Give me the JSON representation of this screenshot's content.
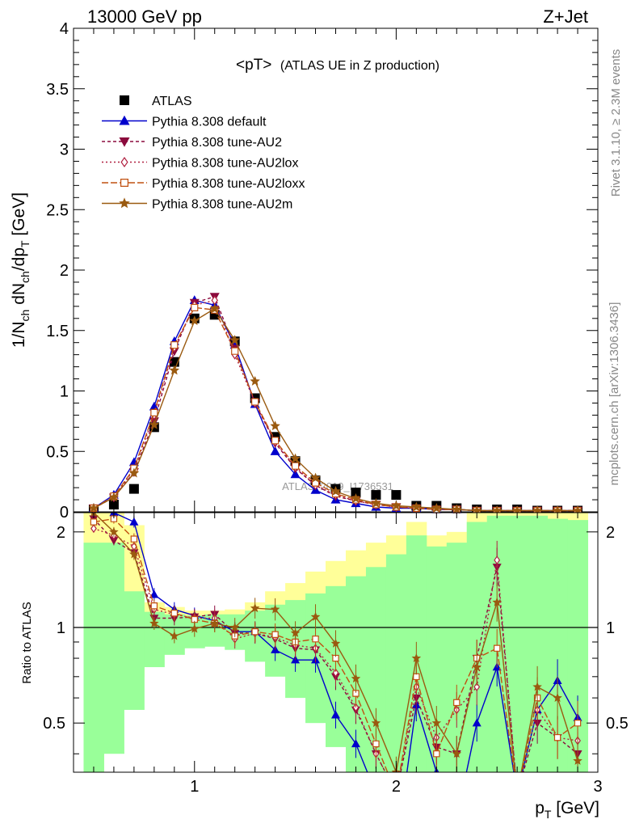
{
  "header": {
    "left": "13000 GeV pp",
    "right": "Z+Jet"
  },
  "side_labels": {
    "rivet": "Rivet 3.1.10, ≥ 2.3M events",
    "mcplots": "mcplots.cern.ch [arXiv:1306.3436]"
  },
  "colors": {
    "atlas": "#000000",
    "default": "#0000cc",
    "au2": "#8b0a3d",
    "au2lox": "#b02040",
    "au2loxx": "#c05010",
    "au2m": "#9a5a10",
    "band_inner": "#99ff99",
    "band_outer": "#ffff99"
  },
  "chart_data": [
    {
      "type": "line",
      "title": "<pT>",
      "subtitle": "(ATLAS UE in Z production)",
      "ylabel_main": "1/N",
      "ylabel_sub1": "ch",
      "ylabel_mid": " dN",
      "ylabel_sub2": "ch",
      "ylabel_end": "/dp",
      "ylabel_sub3": "T",
      "ylabel_unit": " [GeV]",
      "xlabel_main": "p",
      "xlabel_sub": "T",
      "xlabel_unit": " [GeV]",
      "xlim": [
        0.4,
        3.0
      ],
      "ylim": [
        0,
        4.0
      ],
      "xticks": [
        "1",
        "2",
        "3"
      ],
      "yticks": [
        "0",
        "0.5",
        "1",
        "1.5",
        "2",
        "2.5",
        "3",
        "3.5",
        "4"
      ],
      "watermark": "ATLAS_2019_I1736531",
      "legend_position": "top-left",
      "x": [
        0.5,
        0.6,
        0.7,
        0.8,
        0.9,
        1.0,
        1.1,
        1.2,
        1.3,
        1.4,
        1.5,
        1.6,
        1.7,
        1.8,
        1.9,
        2.0,
        2.1,
        2.2,
        2.3,
        2.4,
        2.5,
        2.6,
        2.7,
        2.8,
        2.9
      ],
      "series": [
        {
          "name": "ATLAS",
          "key": "atlas",
          "values": [
            0.02,
            0.06,
            0.19,
            0.7,
            1.24,
            1.6,
            1.63,
            1.41,
            0.94,
            0.62,
            0.42,
            0.26,
            0.19,
            0.16,
            0.14,
            0.14,
            0.05,
            0.05,
            0.03,
            0.02,
            0.02,
            0.02,
            0.01,
            0.01,
            0.01
          ]
        },
        {
          "name": "Pythia 8.308 default",
          "key": "default",
          "values": [
            0.03,
            0.14,
            0.41,
            0.87,
            1.41,
            1.75,
            1.71,
            1.38,
            0.89,
            0.5,
            0.31,
            0.18,
            0.1,
            0.07,
            0.04,
            0.03,
            0.03,
            0.02,
            0.02,
            0.01,
            0.01,
            0.01,
            0.01,
            0.01,
            0.01
          ]
        },
        {
          "name": "Pythia 8.308 tune-AU2",
          "key": "au2",
          "values": [
            0.03,
            0.12,
            0.33,
            0.75,
            1.33,
            1.73,
            1.78,
            1.35,
            0.9,
            0.57,
            0.36,
            0.22,
            0.13,
            0.09,
            0.06,
            0.04,
            0.03,
            0.02,
            0.02,
            0.01,
            0.01,
            0.01,
            0.01,
            0.01,
            0.01
          ]
        },
        {
          "name": "Pythia 8.308 tune-AU2lox",
          "key": "au2lox",
          "values": [
            0.03,
            0.12,
            0.35,
            0.8,
            1.36,
            1.71,
            1.75,
            1.3,
            0.9,
            0.58,
            0.37,
            0.22,
            0.14,
            0.09,
            0.06,
            0.04,
            0.03,
            0.02,
            0.02,
            0.01,
            0.01,
            0.01,
            0.01,
            0.01,
            0.01
          ]
        },
        {
          "name": "Pythia 8.308 tune-AU2loxx",
          "key": "au2loxx",
          "values": [
            0.03,
            0.13,
            0.36,
            0.82,
            1.38,
            1.69,
            1.67,
            1.33,
            0.91,
            0.59,
            0.38,
            0.24,
            0.15,
            0.1,
            0.06,
            0.04,
            0.03,
            0.02,
            0.02,
            0.01,
            0.01,
            0.01,
            0.01,
            0.01,
            0.01
          ]
        },
        {
          "name": "Pythia 8.308 tune-AU2m",
          "key": "au2m",
          "values": [
            0.03,
            0.12,
            0.32,
            0.72,
            1.17,
            1.58,
            1.68,
            1.42,
            1.08,
            0.71,
            0.44,
            0.28,
            0.17,
            0.11,
            0.07,
            0.05,
            0.04,
            0.03,
            0.02,
            0.01,
            0.01,
            0.01,
            0.01,
            0.01,
            0.01
          ]
        }
      ]
    },
    {
      "type": "line",
      "ylabel": "Ratio to ATLAS",
      "xlim": [
        0.4,
        3.0
      ],
      "ylim": [
        0.35,
        2.3
      ],
      "xticks": [
        "1",
        "2",
        "3"
      ],
      "yticks": [
        "0.5",
        "1",
        "2"
      ],
      "reference_line": 1.0,
      "x": [
        0.5,
        0.6,
        0.7,
        0.8,
        0.9,
        1.0,
        1.1,
        1.2,
        1.3,
        1.4,
        1.5,
        1.6,
        1.7,
        1.8,
        1.9,
        2.0,
        2.1,
        2.2,
        2.3,
        2.4,
        2.5,
        2.6,
        2.7,
        2.8,
        2.9
      ],
      "band_outer": {
        "low": [
          0.35,
          0.6,
          0.7,
          0.82,
          0.86,
          0.88,
          0.88,
          0.87,
          0.82,
          0.75,
          0.68,
          0.62,
          0.55,
          0.45,
          0.35,
          0.35,
          0.35,
          0.35,
          0.35,
          0.35,
          0.35,
          0.35,
          0.35,
          0.35,
          0.35
        ],
        "high": [
          2.3,
          2.3,
          2.1,
          1.2,
          1.16,
          1.13,
          1.13,
          1.14,
          1.2,
          1.3,
          1.38,
          1.5,
          1.62,
          1.75,
          1.85,
          1.95,
          2.15,
          1.95,
          2.0,
          2.3,
          2.3,
          2.3,
          2.3,
          2.3,
          2.3
        ]
      },
      "band_inner": {
        "low": [
          0.35,
          0.4,
          0.55,
          0.75,
          0.82,
          0.86,
          0.87,
          0.85,
          0.78,
          0.7,
          0.6,
          0.5,
          0.42,
          0.35,
          0.35,
          0.35,
          0.35,
          0.35,
          0.35,
          0.35,
          0.35,
          0.35,
          0.35,
          0.35,
          0.35
        ],
        "high": [
          1.85,
          1.85,
          1.3,
          1.12,
          1.1,
          1.09,
          1.1,
          1.1,
          1.13,
          1.18,
          1.22,
          1.28,
          1.35,
          1.45,
          1.55,
          1.7,
          1.95,
          1.8,
          1.85,
          2.15,
          2.25,
          2.25,
          2.25,
          2.2,
          2.18
        ]
      },
      "series": [
        {
          "key": "default",
          "values": [
            2.4,
            2.3,
            2.15,
            1.27,
            1.14,
            1.09,
            1.05,
            0.97,
            0.97,
            0.85,
            0.79,
            0.79,
            0.53,
            0.43,
            0.3,
            0.2,
            0.57,
            0.35,
            0.25,
            0.5,
            0.75,
            0.3,
            0.55,
            0.68,
            0.52
          ]
        },
        {
          "key": "au2",
          "values": [
            2.2,
            1.88,
            1.72,
            1.07,
            1.07,
            1.08,
            1.1,
            0.96,
            0.96,
            0.92,
            0.86,
            0.85,
            0.7,
            0.55,
            0.4,
            0.3,
            0.6,
            0.42,
            0.4,
            0.8,
            1.55,
            0.3,
            0.5,
            0.45,
            0.4
          ]
        },
        {
          "key": "au2lox",
          "values": [
            2.05,
            1.95,
            1.8,
            1.14,
            1.1,
            1.07,
            1.07,
            0.92,
            0.96,
            0.93,
            0.88,
            0.86,
            0.72,
            0.56,
            0.4,
            0.3,
            0.65,
            0.45,
            0.55,
            0.65,
            1.63,
            0.3,
            0.55,
            0.45,
            0.44
          ]
        },
        {
          "key": "au2loxx",
          "values": [
            2.15,
            2.2,
            1.9,
            1.17,
            1.11,
            1.06,
            1.03,
            0.94,
            0.97,
            0.95,
            0.9,
            0.92,
            0.8,
            0.62,
            0.43,
            0.3,
            0.7,
            0.4,
            0.58,
            0.8,
            0.86,
            0.3,
            0.6,
            0.45,
            0.5
          ]
        },
        {
          "key": "au2m",
          "values": [
            2.3,
            2.0,
            1.7,
            1.03,
            0.94,
            0.99,
            1.03,
            1.0,
            1.15,
            1.14,
            0.96,
            1.08,
            0.89,
            0.69,
            0.5,
            0.35,
            0.8,
            0.5,
            0.4,
            0.75,
            1.2,
            0.3,
            0.65,
            0.6,
            0.38
          ]
        }
      ]
    }
  ]
}
